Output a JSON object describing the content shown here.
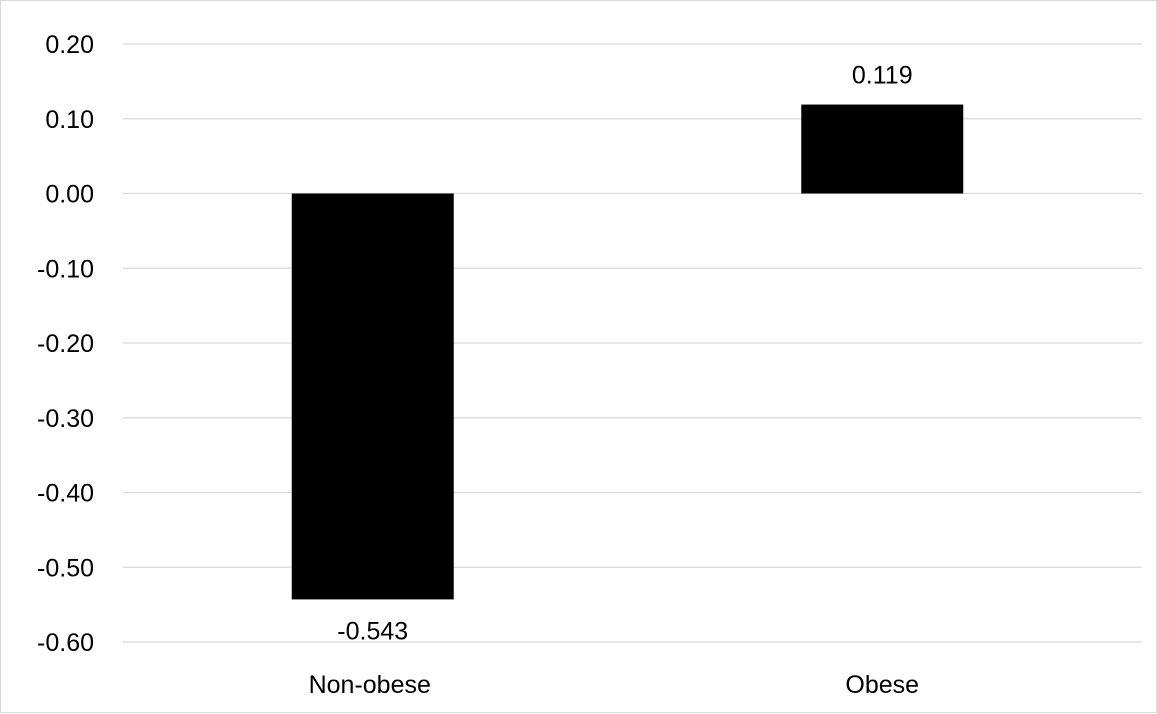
{
  "chart_data": {
    "type": "bar",
    "categories": [
      "Non-obese",
      "Obese"
    ],
    "values": [
      -0.543,
      0.119
    ],
    "data_labels": [
      "-0.543",
      "0.119"
    ],
    "ylim": [
      -0.6,
      0.2
    ],
    "yticks": [
      0.2,
      0.1,
      0.0,
      -0.1,
      -0.2,
      -0.3,
      -0.4,
      -0.5,
      -0.6
    ],
    "ytick_labels": [
      "0.20",
      "0.10",
      "0.00",
      "-0.10",
      "-0.20",
      "-0.30",
      "-0.40",
      "-0.50",
      "-0.60"
    ],
    "title": "",
    "xlabel": "",
    "ylabel": "",
    "grid": true,
    "legend": "none",
    "bar_color": "#000000",
    "grid_color": "#d9d9d9"
  }
}
